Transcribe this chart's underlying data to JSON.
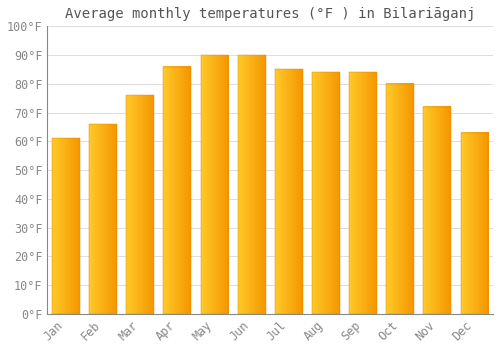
{
  "title": "Average monthly temperatures (°F ) in Bilariāganj",
  "months": [
    "Jan",
    "Feb",
    "Mar",
    "Apr",
    "May",
    "Jun",
    "Jul",
    "Aug",
    "Sep",
    "Oct",
    "Nov",
    "Dec"
  ],
  "values": [
    61,
    66,
    76,
    86,
    90,
    90,
    85,
    84,
    84,
    80,
    72,
    63
  ],
  "bar_color_left": "#FFCA28",
  "bar_color_right": "#F59600",
  "background_color": "#ffffff",
  "ylim": [
    0,
    100
  ],
  "yticks": [
    0,
    10,
    20,
    30,
    40,
    50,
    60,
    70,
    80,
    90,
    100
  ],
  "ytick_labels": [
    "0°F",
    "10°F",
    "20°F",
    "30°F",
    "40°F",
    "50°F",
    "60°F",
    "70°F",
    "80°F",
    "90°F",
    "100°F"
  ],
  "title_fontsize": 10,
  "tick_fontsize": 8.5,
  "grid_color": "#dddddd",
  "plot_bg_color": "#ffffff",
  "tick_color": "#888888"
}
